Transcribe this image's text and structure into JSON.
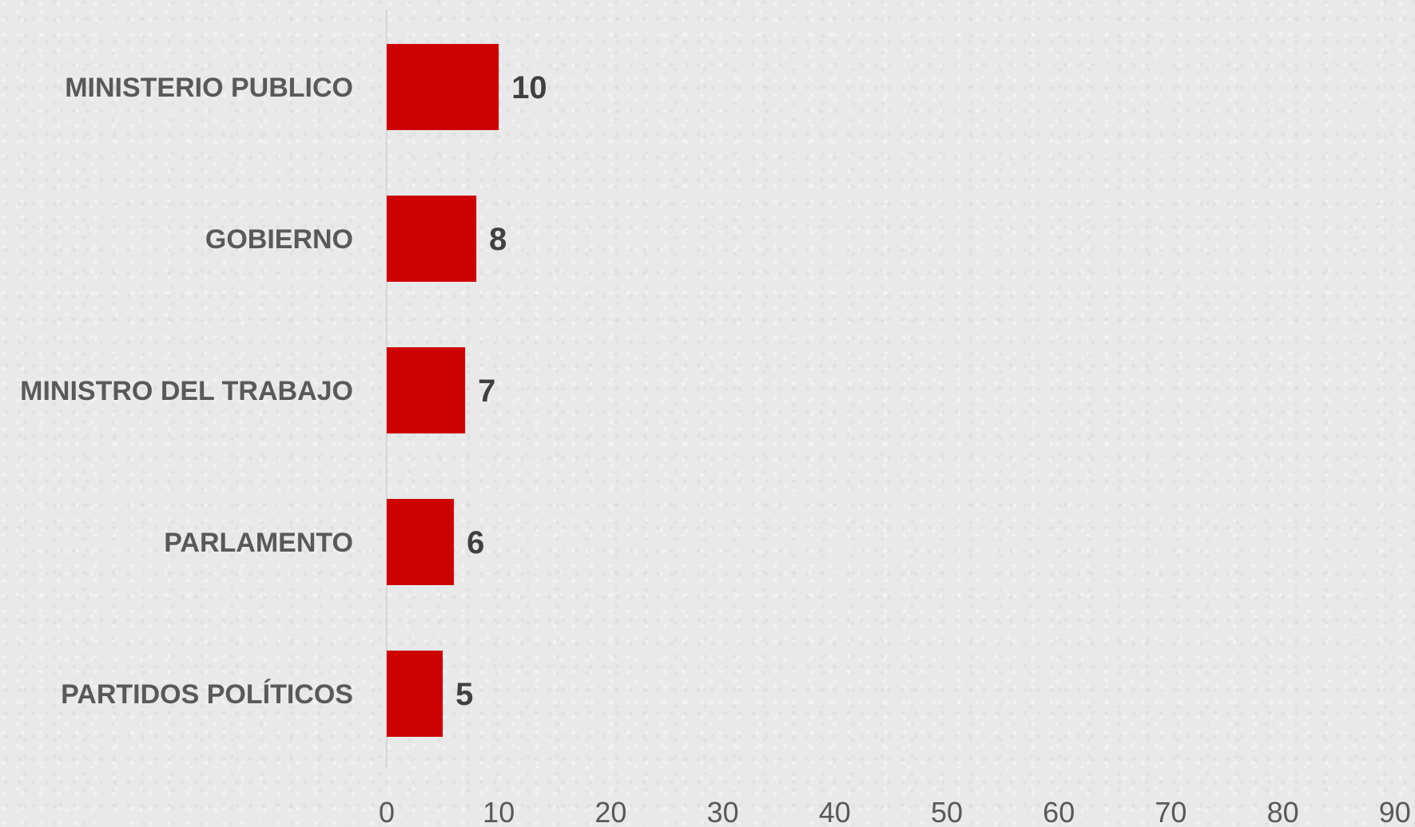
{
  "chart_data": {
    "type": "bar",
    "orientation": "horizontal",
    "categories": [
      "MINISTERIO PUBLICO",
      "GOBIERNO",
      "MINISTRO DEL TRABAJO",
      "PARLAMENTO",
      "PARTIDOS POLÍTICOS"
    ],
    "values": [
      10,
      8,
      7,
      6,
      5
    ],
    "data_labels": [
      "10",
      "8",
      "7",
      "6",
      "5"
    ],
    "xlim": [
      0,
      90
    ],
    "x_ticks": [
      "0",
      "10",
      "20",
      "30",
      "40",
      "50",
      "60",
      "70",
      "80",
      "90"
    ],
    "title": "",
    "xlabel": "",
    "ylabel": "",
    "grid": false,
    "legend": "none",
    "bar_color": "#cc0000",
    "background_color": "#e9e9e9"
  }
}
